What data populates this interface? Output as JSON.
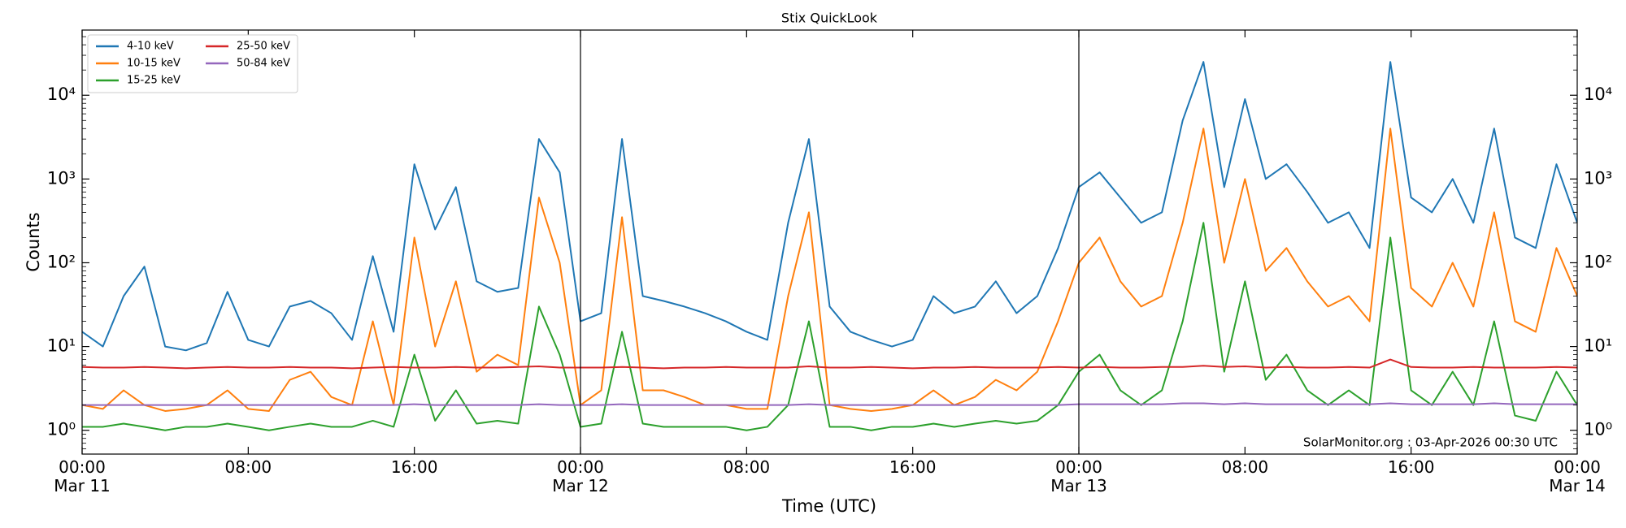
{
  "chart_data": {
    "type": "line",
    "title": "Stix QuickLook",
    "xlabel": "Time (UTC)",
    "ylabel": "Counts",
    "annotation": "SolarMonitor.org : 03-Apr-2026 00:30 UTC",
    "log_y": true,
    "legend": "upper left",
    "x": [
      "Mar 11 00:00",
      "Mar 11 01:00",
      "Mar 11 02:00",
      "Mar 11 03:00",
      "Mar 11 04:00",
      "Mar 11 05:00",
      "Mar 11 06:00",
      "Mar 11 07:00",
      "Mar 11 08:00",
      "Mar 11 09:00",
      "Mar 11 10:00",
      "Mar 11 11:00",
      "Mar 11 12:00",
      "Mar 11 13:00",
      "Mar 11 14:00",
      "Mar 11 15:00",
      "Mar 11 16:00",
      "Mar 11 17:00",
      "Mar 11 18:00",
      "Mar 11 19:00",
      "Mar 11 20:00",
      "Mar 11 21:00",
      "Mar 11 22:00",
      "Mar 11 23:00",
      "Mar 12 00:00",
      "Mar 12 01:00",
      "Mar 12 02:00",
      "Mar 12 03:00",
      "Mar 12 04:00",
      "Mar 12 05:00",
      "Mar 12 06:00",
      "Mar 12 07:00",
      "Mar 12 08:00",
      "Mar 12 09:00",
      "Mar 12 10:00",
      "Mar 12 11:00",
      "Mar 12 12:00",
      "Mar 12 13:00",
      "Mar 12 14:00",
      "Mar 12 15:00",
      "Mar 12 16:00",
      "Mar 12 17:00",
      "Mar 12 18:00",
      "Mar 12 19:00",
      "Mar 12 20:00",
      "Mar 12 21:00",
      "Mar 12 22:00",
      "Mar 12 23:00",
      "Mar 13 00:00",
      "Mar 13 01:00",
      "Mar 13 02:00",
      "Mar 13 03:00",
      "Mar 13 04:00",
      "Mar 13 05:00",
      "Mar 13 06:00",
      "Mar 13 07:00",
      "Mar 13 08:00",
      "Mar 13 09:00",
      "Mar 13 10:00",
      "Mar 13 11:00",
      "Mar 13 12:00",
      "Mar 13 13:00",
      "Mar 13 14:00",
      "Mar 13 15:00",
      "Mar 13 16:00",
      "Mar 13 17:00",
      "Mar 13 18:00",
      "Mar 13 19:00",
      "Mar 13 20:00",
      "Mar 13 21:00",
      "Mar 13 22:00",
      "Mar 13 23:00",
      "Mar 14 00:00"
    ],
    "series": [
      {
        "name": "4-10 keV",
        "color": "#1f77b4",
        "values": [
          15,
          10,
          40,
          90,
          10,
          9,
          11,
          45,
          12,
          10,
          30,
          35,
          25,
          12,
          120,
          15,
          1500,
          250,
          800,
          60,
          45,
          50,
          3000,
          1200,
          20,
          25,
          3000,
          40,
          35,
          30,
          25,
          20,
          15,
          12,
          300,
          3000,
          30,
          15,
          12,
          10,
          12,
          40,
          25,
          30,
          60,
          25,
          40,
          150,
          800,
          1200,
          600,
          300,
          400,
          5000,
          25000,
          800,
          9000,
          1000,
          1500,
          700,
          300,
          400,
          150,
          25000,
          600,
          400,
          1000,
          300,
          4000,
          200,
          150,
          1500,
          300
        ]
      },
      {
        "name": "10-15 keV",
        "color": "#ff7f0e",
        "values": [
          2,
          1.8,
          3,
          2,
          1.7,
          1.8,
          2,
          3,
          1.8,
          1.7,
          4,
          5,
          2.5,
          2,
          20,
          2,
          200,
          10,
          60,
          5,
          8,
          6,
          600,
          100,
          2,
          3,
          350,
          3,
          3,
          2.5,
          2,
          2,
          1.8,
          1.8,
          40,
          400,
          2,
          1.8,
          1.7,
          1.8,
          2,
          3,
          2,
          2.5,
          4,
          3,
          5,
          20,
          100,
          200,
          60,
          30,
          40,
          300,
          4000,
          100,
          1000,
          80,
          150,
          60,
          30,
          40,
          20,
          4000,
          50,
          30,
          100,
          30,
          400,
          20,
          15,
          150,
          40
        ]
      },
      {
        "name": "15-25 keV",
        "color": "#2ca02c",
        "values": [
          1.1,
          1.1,
          1.2,
          1.1,
          1,
          1.1,
          1.1,
          1.2,
          1.1,
          1,
          1.1,
          1.2,
          1.1,
          1.1,
          1.3,
          1.1,
          8,
          1.3,
          3,
          1.2,
          1.3,
          1.2,
          30,
          8,
          1.1,
          1.2,
          15,
          1.2,
          1.1,
          1.1,
          1.1,
          1.1,
          1,
          1.1,
          2,
          20,
          1.1,
          1.1,
          1,
          1.1,
          1.1,
          1.2,
          1.1,
          1.2,
          1.3,
          1.2,
          1.3,
          2,
          5,
          8,
          3,
          2,
          3,
          20,
          300,
          5,
          60,
          4,
          8,
          3,
          2,
          3,
          2,
          200,
          3,
          2,
          5,
          2,
          20,
          1.5,
          1.3,
          5,
          2
        ]
      },
      {
        "name": "25-50 keV",
        "color": "#d62728",
        "values": [
          5.7,
          5.6,
          5.6,
          5.7,
          5.6,
          5.5,
          5.6,
          5.7,
          5.6,
          5.6,
          5.7,
          5.6,
          5.6,
          5.5,
          5.6,
          5.7,
          5.6,
          5.6,
          5.7,
          5.6,
          5.6,
          5.7,
          5.8,
          5.6,
          5.6,
          5.6,
          5.7,
          5.6,
          5.5,
          5.6,
          5.6,
          5.7,
          5.6,
          5.6,
          5.6,
          5.8,
          5.6,
          5.6,
          5.7,
          5.6,
          5.5,
          5.6,
          5.6,
          5.7,
          5.6,
          5.6,
          5.6,
          5.7,
          5.6,
          5.7,
          5.6,
          5.6,
          5.7,
          5.7,
          5.9,
          5.7,
          5.8,
          5.6,
          5.7,
          5.6,
          5.6,
          5.7,
          5.6,
          7,
          5.7,
          5.6,
          5.6,
          5.7,
          5.6,
          5.6,
          5.6,
          5.7,
          5.6
        ]
      },
      {
        "name": "50-84 keV",
        "color": "#9467bd",
        "values": [
          2,
          2,
          2,
          2,
          2,
          2,
          2,
          2,
          2,
          2,
          2,
          2,
          2,
          2,
          2,
          2,
          2.05,
          2,
          2,
          2,
          2,
          2,
          2.05,
          2,
          2,
          2,
          2.05,
          2,
          2,
          2,
          2,
          2,
          2,
          2,
          2,
          2.05,
          2,
          2,
          2,
          2,
          2,
          2,
          2,
          2,
          2,
          2,
          2,
          2,
          2.05,
          2.05,
          2.05,
          2.05,
          2.05,
          2.1,
          2.1,
          2.05,
          2.1,
          2.05,
          2.05,
          2.05,
          2.05,
          2.05,
          2.05,
          2.1,
          2.05,
          2.05,
          2.05,
          2.05,
          2.1,
          2.05,
          2.05,
          2.05,
          2.05
        ]
      }
    ],
    "xlim": [
      "Mar 11 00:00",
      "Mar 14 00:00"
    ],
    "xticks": [
      {
        "value": "Mar 11 00:00",
        "label": "00:00\nMar 11"
      },
      {
        "value": "Mar 11 08:00",
        "label": "08:00"
      },
      {
        "value": "Mar 11 16:00",
        "label": "16:00"
      },
      {
        "value": "Mar 12 00:00",
        "label": "00:00\nMar 12"
      },
      {
        "value": "Mar 12 08:00",
        "label": "08:00"
      },
      {
        "value": "Mar 12 16:00",
        "label": "16:00"
      },
      {
        "value": "Mar 13 00:00",
        "label": "00:00\nMar 13"
      },
      {
        "value": "Mar 13 08:00",
        "label": "08:00"
      },
      {
        "value": "Mar 13 16:00",
        "label": "16:00"
      },
      {
        "value": "Mar 14 00:00",
        "label": "00:00\nMar 14"
      }
    ],
    "vlines": [
      "Mar 12 00:00",
      "Mar 13 00:00"
    ],
    "ylim": [
      0.52,
      60000
    ],
    "yticks": [
      {
        "value": 1,
        "label": "10⁰"
      },
      {
        "value": 10,
        "label": "10¹"
      },
      {
        "value": 100,
        "label": "10²"
      },
      {
        "value": 1000,
        "label": "10³"
      },
      {
        "value": 10000,
        "label": "10⁴"
      }
    ]
  }
}
